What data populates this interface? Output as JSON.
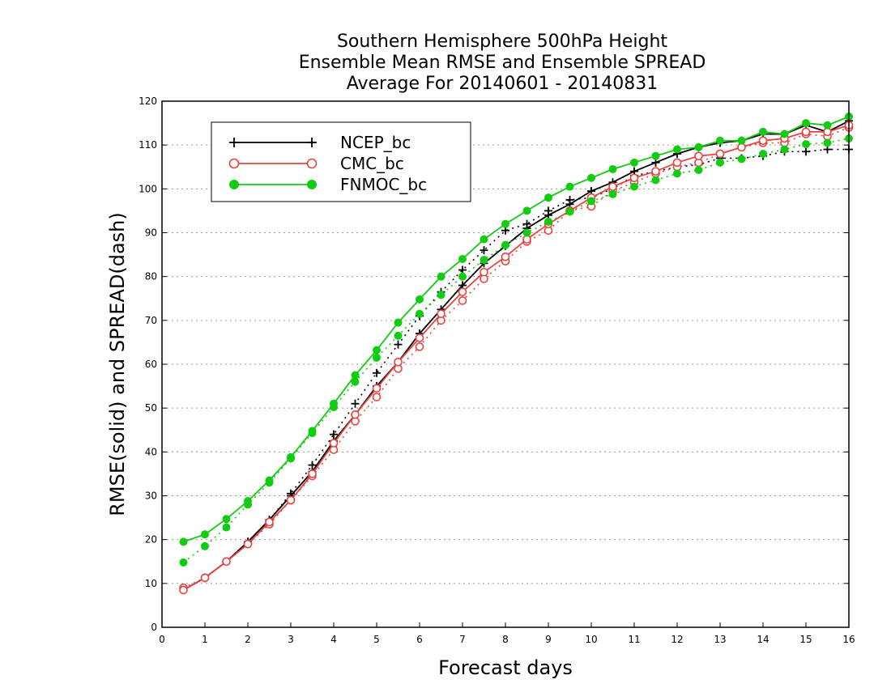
{
  "chart_data": {
    "type": "line",
    "title": [
      "Southern Hemisphere 500hPa Height",
      "Ensemble Mean RMSE and Ensemble SPREAD",
      "Average For 20140601 - 20140831"
    ],
    "xlabel": "Forecast days",
    "ylabel": "RMSE(solid) and SPREAD(dash)",
    "xlim": [
      0,
      16
    ],
    "ylim": [
      0,
      120
    ],
    "xticks": [
      0,
      1,
      2,
      3,
      4,
      5,
      6,
      7,
      8,
      9,
      10,
      11,
      12,
      13,
      14,
      15,
      16
    ],
    "yticks": [
      0,
      10,
      20,
      30,
      40,
      50,
      60,
      70,
      80,
      90,
      100,
      110,
      120
    ],
    "grid": "horizontal dotted",
    "legend_position": "top-left",
    "x": [
      0.5,
      1,
      1.5,
      2,
      2.5,
      3,
      3.5,
      4,
      4.5,
      5,
      5.5,
      6,
      6.5,
      7,
      7.5,
      8,
      8.5,
      9,
      9.5,
      10,
      10.5,
      11,
      11.5,
      12,
      12.5,
      13,
      13.5,
      14,
      14.5,
      15,
      15.5,
      16
    ],
    "series": [
      {
        "name": "NCEP_bc",
        "color": "#000000",
        "marker": "plus",
        "rmse": [
          8.5,
          11.3,
          15,
          19.5,
          24.5,
          30,
          35.5,
          42.5,
          48.5,
          55,
          60.5,
          67,
          72.5,
          78,
          83,
          87,
          91,
          94,
          96.5,
          99.5,
          101.5,
          104,
          106,
          108,
          109.5,
          110.5,
          111,
          112.5,
          112.5,
          114.5,
          113,
          115.5
        ],
        "spread": [
          8.5,
          11.2,
          15,
          19.5,
          24.5,
          30.5,
          37,
          44,
          51,
          58,
          64.5,
          71,
          76.5,
          81.5,
          86,
          90.5,
          92,
          95,
          97.5,
          98,
          100,
          103,
          104,
          105,
          105.5,
          107,
          107,
          107.5,
          108.5,
          108.5,
          109,
          109
        ]
      },
      {
        "name": "CMC_bc",
        "color": "#e8423f",
        "marker": "open-circle",
        "rmse": [
          8.5,
          11.3,
          15,
          19,
          24,
          29,
          35,
          42,
          48.5,
          54.5,
          60.5,
          66,
          71.5,
          76.5,
          81,
          84.5,
          88.5,
          92,
          95,
          98,
          100.5,
          102.5,
          104,
          106,
          107.5,
          108,
          109.5,
          111,
          111.5,
          113,
          113,
          114.5
        ],
        "spread": [
          9,
          11.3,
          15,
          19,
          23.5,
          29,
          34.5,
          40.5,
          47,
          52.5,
          59,
          64,
          70,
          74.5,
          79.5,
          83.5,
          88,
          90.5,
          95,
          96,
          99.5,
          101.5,
          103.5,
          105,
          106,
          108,
          109.5,
          110.5,
          110.5,
          112.5,
          112,
          114
        ]
      },
      {
        "name": "FNMOC_bc",
        "color": "#11cc11",
        "marker": "filled-circle",
        "rmse": [
          19.5,
          21.2,
          24.7,
          28.8,
          33.5,
          38.8,
          44.8,
          51,
          57.5,
          63.2,
          69.5,
          74.8,
          80,
          84,
          88.5,
          92,
          95,
          98,
          100.5,
          102.5,
          104.5,
          106,
          107.5,
          109,
          109.5,
          111,
          111,
          113,
          112.5,
          115,
          114.5,
          116.5
        ],
        "spread": [
          14.8,
          18.5,
          22.8,
          28,
          33,
          38.5,
          44.3,
          50.2,
          56,
          61.5,
          66.5,
          71.5,
          75.8,
          80,
          83.8,
          87.2,
          90,
          92.5,
          94.8,
          97.2,
          98.8,
          100.5,
          102,
          103.5,
          104.3,
          106,
          106.8,
          108,
          109,
          110.2,
          110.5,
          111.5
        ]
      }
    ]
  }
}
